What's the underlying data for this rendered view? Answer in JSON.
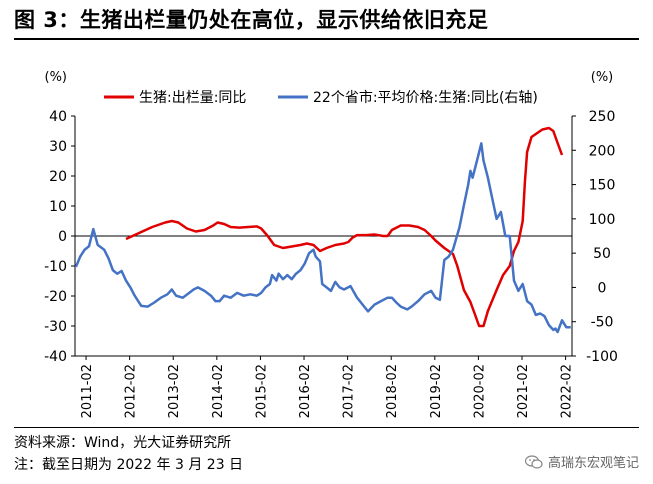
{
  "title": "图 3：生猪出栏量仍处在高位，显示供给依旧充足",
  "source": "资料来源：Wind，光大证券研究所",
  "note": "注：截至日期为 2022 年 3 月 23 日",
  "watermark": "高瑞东宏观笔记",
  "colors": {
    "red": "#e00000",
    "blue": "#4472c4"
  },
  "chart_data": {
    "type": "line",
    "y_left": {
      "unit": "(%)",
      "min": -40,
      "max": 40,
      "ticks": [
        -40,
        -30,
        -20,
        -10,
        0,
        10,
        20,
        30,
        40
      ]
    },
    "y_right": {
      "unit": "(%)",
      "min": -100,
      "max": 250,
      "ticks": [
        -100,
        -50,
        0,
        50,
        100,
        150,
        200,
        250
      ]
    },
    "x_ticks": [
      "2011-02",
      "2012-02",
      "2013-02",
      "2014-02",
      "2015-02",
      "2016-02",
      "2017-02",
      "2018-02",
      "2019-02",
      "2020-02",
      "2021-02",
      "2022-02"
    ],
    "legend_position": "top",
    "series": [
      {
        "name": "生猪:出栏量:同比",
        "axis": "left",
        "color": "#e00000",
        "points": [
          [
            2012.0,
            -1
          ],
          [
            2012.3,
            1
          ],
          [
            2012.6,
            3
          ],
          [
            2012.9,
            4.5
          ],
          [
            2013.05,
            5
          ],
          [
            2013.2,
            4.5
          ],
          [
            2013.4,
            2.5
          ],
          [
            2013.6,
            1.5
          ],
          [
            2013.8,
            2
          ],
          [
            2014.0,
            3.5
          ],
          [
            2014.1,
            4.5
          ],
          [
            2014.25,
            4
          ],
          [
            2014.4,
            3
          ],
          [
            2014.6,
            2.8
          ],
          [
            2014.8,
            3
          ],
          [
            2015.0,
            3.2
          ],
          [
            2015.1,
            2.5
          ],
          [
            2015.25,
            0
          ],
          [
            2015.4,
            -3
          ],
          [
            2015.6,
            -4
          ],
          [
            2015.8,
            -3.5
          ],
          [
            2016.0,
            -3
          ],
          [
            2016.15,
            -2.5
          ],
          [
            2016.3,
            -3
          ],
          [
            2016.45,
            -5
          ],
          [
            2016.6,
            -4
          ],
          [
            2016.8,
            -3
          ],
          [
            2017.0,
            -2.5
          ],
          [
            2017.1,
            -2
          ],
          [
            2017.2,
            -0.5
          ],
          [
            2017.3,
            0.3
          ],
          [
            2017.5,
            0.3
          ],
          [
            2017.7,
            0.5
          ],
          [
            2017.9,
            0
          ],
          [
            2018.0,
            0
          ],
          [
            2018.1,
            2
          ],
          [
            2018.3,
            3.5
          ],
          [
            2018.5,
            3.5
          ],
          [
            2018.7,
            3
          ],
          [
            2018.85,
            2
          ],
          [
            2019.0,
            0
          ],
          [
            2019.1,
            -1.5
          ],
          [
            2019.3,
            -4
          ],
          [
            2019.4,
            -5
          ],
          [
            2019.5,
            -6
          ],
          [
            2019.6,
            -10
          ],
          [
            2019.75,
            -18
          ],
          [
            2019.9,
            -22
          ],
          [
            2020.0,
            -26
          ],
          [
            2020.1,
            -30
          ],
          [
            2020.2,
            -30
          ],
          [
            2020.3,
            -25
          ],
          [
            2020.5,
            -18
          ],
          [
            2020.65,
            -13
          ],
          [
            2020.8,
            -10
          ],
          [
            2020.9,
            -5
          ],
          [
            2021.0,
            -2
          ],
          [
            2021.1,
            5
          ],
          [
            2021.15,
            18
          ],
          [
            2021.2,
            28
          ],
          [
            2021.3,
            33
          ],
          [
            2021.4,
            34
          ],
          [
            2021.55,
            35.5
          ],
          [
            2021.7,
            36
          ],
          [
            2021.8,
            35
          ],
          [
            2021.9,
            31
          ],
          [
            2022.0,
            27
          ]
        ]
      },
      {
        "name": "22个省市:平均价格:生猪:同比(右轴)",
        "axis": "right",
        "color": "#4472c4",
        "points": [
          [
            2010.85,
            30
          ],
          [
            2010.95,
            45
          ],
          [
            2011.05,
            55
          ],
          [
            2011.15,
            60
          ],
          [
            2011.25,
            85
          ],
          [
            2011.35,
            62
          ],
          [
            2011.5,
            55
          ],
          [
            2011.6,
            42
          ],
          [
            2011.7,
            25
          ],
          [
            2011.8,
            20
          ],
          [
            2011.9,
            24
          ],
          [
            2012.0,
            10
          ],
          [
            2012.1,
            0
          ],
          [
            2012.2,
            -12
          ],
          [
            2012.35,
            -27
          ],
          [
            2012.5,
            -28
          ],
          [
            2012.65,
            -22
          ],
          [
            2012.8,
            -15
          ],
          [
            2012.95,
            -10
          ],
          [
            2013.05,
            -3
          ],
          [
            2013.15,
            -12
          ],
          [
            2013.3,
            -15
          ],
          [
            2013.45,
            -8
          ],
          [
            2013.55,
            -3
          ],
          [
            2013.65,
            0
          ],
          [
            2013.8,
            -5
          ],
          [
            2013.95,
            -12
          ],
          [
            2014.05,
            -20
          ],
          [
            2014.15,
            -20
          ],
          [
            2014.25,
            -12
          ],
          [
            2014.4,
            -15
          ],
          [
            2014.55,
            -8
          ],
          [
            2014.7,
            -12
          ],
          [
            2014.85,
            -10
          ],
          [
            2015.0,
            -12
          ],
          [
            2015.1,
            -8
          ],
          [
            2015.2,
            0
          ],
          [
            2015.3,
            5
          ],
          [
            2015.35,
            18
          ],
          [
            2015.45,
            10
          ],
          [
            2015.5,
            20
          ],
          [
            2015.6,
            12
          ],
          [
            2015.7,
            18
          ],
          [
            2015.8,
            12
          ],
          [
            2015.9,
            20
          ],
          [
            2016.0,
            25
          ],
          [
            2016.1,
            35
          ],
          [
            2016.2,
            50
          ],
          [
            2016.3,
            55
          ],
          [
            2016.35,
            45
          ],
          [
            2016.45,
            38
          ],
          [
            2016.5,
            5
          ],
          [
            2016.6,
            0
          ],
          [
            2016.7,
            -5
          ],
          [
            2016.8,
            8
          ],
          [
            2016.9,
            0
          ],
          [
            2017.0,
            -3
          ],
          [
            2017.15,
            2
          ],
          [
            2017.3,
            -15
          ],
          [
            2017.45,
            -27
          ],
          [
            2017.55,
            -35
          ],
          [
            2017.7,
            -25
          ],
          [
            2017.85,
            -20
          ],
          [
            2018.0,
            -15
          ],
          [
            2018.1,
            -15
          ],
          [
            2018.2,
            -22
          ],
          [
            2018.3,
            -28
          ],
          [
            2018.45,
            -32
          ],
          [
            2018.55,
            -28
          ],
          [
            2018.7,
            -20
          ],
          [
            2018.85,
            -10
          ],
          [
            2019.0,
            -5
          ],
          [
            2019.1,
            -15
          ],
          [
            2019.2,
            -18
          ],
          [
            2019.3,
            40
          ],
          [
            2019.4,
            45
          ],
          [
            2019.5,
            55
          ],
          [
            2019.65,
            88
          ],
          [
            2019.75,
            120
          ],
          [
            2019.85,
            150
          ],
          [
            2019.9,
            170
          ],
          [
            2019.95,
            160
          ],
          [
            2020.05,
            185
          ],
          [
            2020.15,
            210
          ],
          [
            2020.2,
            185
          ],
          [
            2020.3,
            160
          ],
          [
            2020.4,
            130
          ],
          [
            2020.5,
            100
          ],
          [
            2020.6,
            110
          ],
          [
            2020.7,
            75
          ],
          [
            2020.8,
            75
          ],
          [
            2020.9,
            10
          ],
          [
            2021.0,
            -5
          ],
          [
            2021.1,
            5
          ],
          [
            2021.2,
            -20
          ],
          [
            2021.3,
            -25
          ],
          [
            2021.4,
            -40
          ],
          [
            2021.5,
            -38
          ],
          [
            2021.6,
            -42
          ],
          [
            2021.7,
            -55
          ],
          [
            2021.8,
            -62
          ],
          [
            2021.85,
            -60
          ],
          [
            2021.9,
            -65
          ],
          [
            2022.0,
            -48
          ],
          [
            2022.1,
            -58
          ],
          [
            2022.2,
            -58
          ]
        ]
      }
    ]
  }
}
